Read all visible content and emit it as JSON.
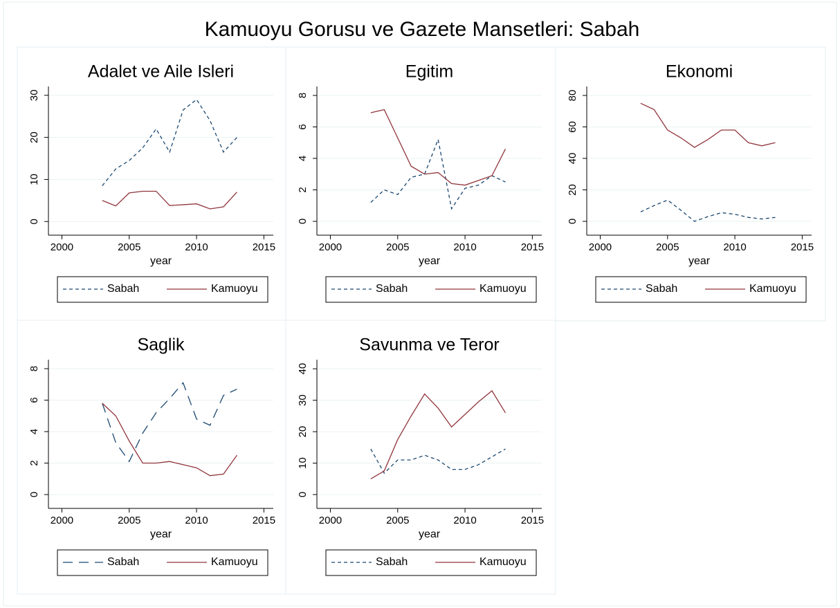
{
  "title": "Kamuoyu Gorusu ve Gazete Mansetleri: Sabah",
  "chart_data": [
    {
      "type": "line",
      "title": "Adalet ve Aile Isleri",
      "xlabel": "year",
      "x": [
        2003,
        2004,
        2005,
        2006,
        2007,
        2008,
        2009,
        2010,
        2011,
        2012,
        2013
      ],
      "series": [
        {
          "name": "Sabah",
          "color": "#1a476f",
          "dash": "short",
          "values": [
            8.5,
            12.5,
            14.5,
            17.5,
            22,
            16.5,
            26.5,
            29,
            24,
            16.5,
            20
          ]
        },
        {
          "name": "Kamuoyu",
          "color": "#90353b",
          "dash": "solid",
          "values": [
            5,
            3.7,
            6.8,
            7.2,
            7.2,
            3.8,
            4,
            4.2,
            3,
            3.5,
            7
          ]
        }
      ],
      "xlim": [
        1999,
        2015.7
      ],
      "xticks": [
        2000,
        2005,
        2010,
        2015
      ],
      "ylim": [
        -1.6,
        32.1
      ],
      "yticks": [
        0,
        10,
        20,
        30
      ],
      "grid": true
    },
    {
      "type": "line",
      "title": "Egitim",
      "xlabel": "year",
      "x": [
        2003,
        2004,
        2005,
        2006,
        2007,
        2008,
        2009,
        2010,
        2011,
        2012,
        2013
      ],
      "series": [
        {
          "name": "Sabah",
          "color": "#1a476f",
          "dash": "short",
          "values": [
            1.2,
            2,
            1.7,
            2.8,
            3,
            5.2,
            0.8,
            2.1,
            2.3,
            2.9,
            2.5
          ]
        },
        {
          "name": "Kamuoyu",
          "color": "#90353b",
          "dash": "solid",
          "values": [
            6.9,
            7.1,
            5.3,
            3.5,
            3,
            3.1,
            2.4,
            2.3,
            2.6,
            2.9,
            4.6
          ]
        }
      ],
      "xlim": [
        1999,
        2015.7
      ],
      "xticks": [
        2000,
        2005,
        2010,
        2015
      ],
      "ylim": [
        -0.44,
        8.57
      ],
      "yticks": [
        0,
        2,
        4,
        6,
        8
      ],
      "grid": true
    },
    {
      "type": "line",
      "title": "Ekonomi",
      "xlabel": "year",
      "x": [
        2003,
        2004,
        2005,
        2006,
        2007,
        2008,
        2009,
        2010,
        2011,
        2012,
        2013
      ],
      "series": [
        {
          "name": "Sabah",
          "color": "#1a476f",
          "dash": "short",
          "values": [
            6,
            10,
            13.5,
            7,
            0,
            3,
            5.5,
            4.5,
            2.5,
            1.5,
            2.5
          ]
        },
        {
          "name": "Kamuoyu",
          "color": "#90353b",
          "dash": "solid",
          "values": [
            75,
            71,
            58,
            53,
            47,
            52,
            58,
            58,
            50,
            48,
            50
          ]
        }
      ],
      "xlim": [
        1999,
        2015.7
      ],
      "xticks": [
        2000,
        2005,
        2010,
        2015
      ],
      "ylim": [
        -4.4,
        85.7
      ],
      "yticks": [
        0,
        20,
        40,
        60,
        80
      ],
      "grid": true
    },
    {
      "type": "line",
      "title": "Saglik",
      "xlabel": "year",
      "x": [
        2003,
        2004,
        2005,
        2006,
        2007,
        2008,
        2009,
        2010,
        2011,
        2012,
        2013
      ],
      "series": [
        {
          "name": "Sabah",
          "color": "#1a476f",
          "dash": "long",
          "values": [
            5.8,
            3.3,
            2.1,
            3.9,
            5.2,
            6.1,
            7.1,
            4.8,
            4.4,
            6.3,
            6.7
          ]
        },
        {
          "name": "Kamuoyu",
          "color": "#90353b",
          "dash": "solid",
          "values": [
            5.8,
            5,
            3.4,
            2,
            2,
            2.1,
            1.9,
            1.7,
            1.2,
            1.3,
            2.5
          ]
        }
      ],
      "xlim": [
        1999,
        2015.7
      ],
      "xticks": [
        2000,
        2005,
        2010,
        2015
      ],
      "ylim": [
        -0.44,
        8.57
      ],
      "yticks": [
        0,
        2,
        4,
        6,
        8
      ],
      "grid": true
    },
    {
      "type": "line",
      "title": "Savunma ve Teror",
      "xlabel": "year",
      "x": [
        2003,
        2004,
        2005,
        2006,
        2007,
        2008,
        2009,
        2010,
        2011,
        2012,
        2013
      ],
      "series": [
        {
          "name": "Sabah",
          "color": "#1a476f",
          "dash": "short",
          "values": [
            14.5,
            6.8,
            11,
            11,
            12.5,
            11,
            8,
            8,
            9.5,
            12,
            14.5
          ]
        },
        {
          "name": "Kamuoyu",
          "color": "#90353b",
          "dash": "solid",
          "values": [
            5,
            7.5,
            17.5,
            25,
            32,
            27.5,
            21.5,
            25.5,
            29.5,
            33,
            26
          ]
        }
      ],
      "xlim": [
        1999,
        2015.7
      ],
      "xticks": [
        2000,
        2005,
        2010,
        2015
      ],
      "ylim": [
        -2.2,
        42.9
      ],
      "yticks": [
        0,
        10,
        20,
        30,
        40
      ],
      "grid": true
    }
  ]
}
